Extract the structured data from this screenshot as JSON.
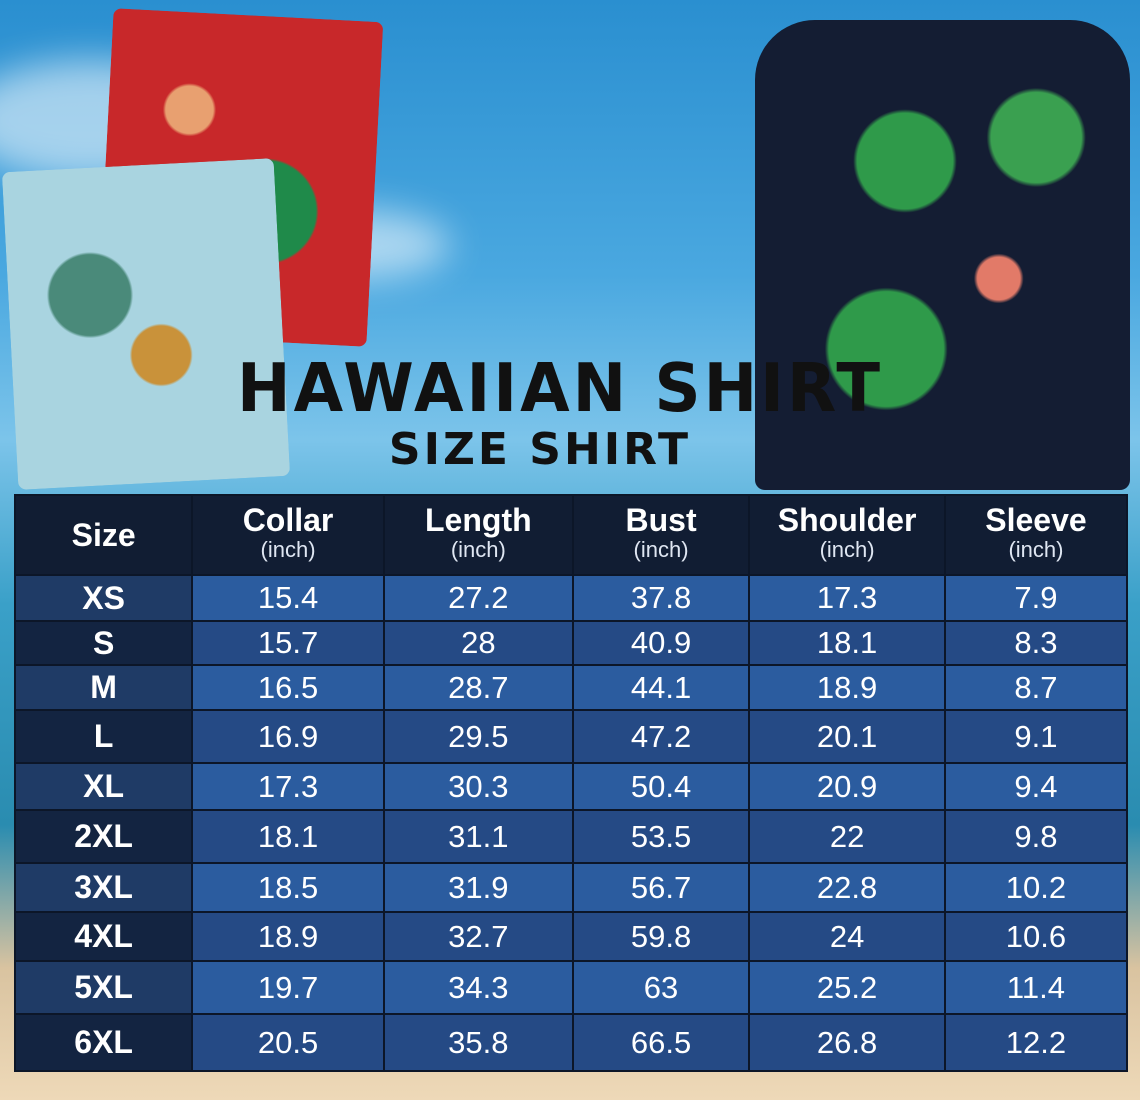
{
  "title": "HAWAIIAN SHIRT",
  "subtitle": "SIZE SHIRT",
  "chart_data": {
    "type": "table",
    "columns": [
      {
        "label": "Size",
        "unit": ""
      },
      {
        "label": "Collar",
        "unit": "(inch)"
      },
      {
        "label": "Length",
        "unit": "(inch)"
      },
      {
        "label": "Bust",
        "unit": "(inch)"
      },
      {
        "label": "Shoulder",
        "unit": "(inch)"
      },
      {
        "label": "Sleeve",
        "unit": "(inch)"
      }
    ],
    "rows": [
      [
        "XS",
        "15.4",
        "27.2",
        "37.8",
        "17.3",
        "7.9"
      ],
      [
        "S",
        "15.7",
        "28",
        "40.9",
        "18.1",
        "8.3"
      ],
      [
        "M",
        "16.5",
        "28.7",
        "44.1",
        "18.9",
        "8.7"
      ],
      [
        "L",
        "16.9",
        "29.5",
        "47.2",
        "20.1",
        "9.1"
      ],
      [
        "XL",
        "17.3",
        "30.3",
        "50.4",
        "20.9",
        "9.4"
      ],
      [
        "2XL",
        "18.1",
        "31.1",
        "53.5",
        "22",
        "9.8"
      ],
      [
        "3XL",
        "18.5",
        "31.9",
        "56.7",
        "22.8",
        "10.2"
      ],
      [
        "4XL",
        "18.9",
        "32.7",
        "59.8",
        "24",
        "10.6"
      ],
      [
        "5XL",
        "19.7",
        "34.3",
        "63",
        "25.2",
        "11.4"
      ],
      [
        "6XL",
        "20.5",
        "35.8",
        "66.5",
        "26.8",
        "12.2"
      ]
    ]
  },
  "colors": {
    "header": "#111d33",
    "row_light": "#2b5c9f",
    "row_dark": "#254a85"
  },
  "row_heights_note": "",
  "images": [
    "folded-red-shirt",
    "folded-blue-shirt",
    "model-flamingo-shirt"
  ]
}
